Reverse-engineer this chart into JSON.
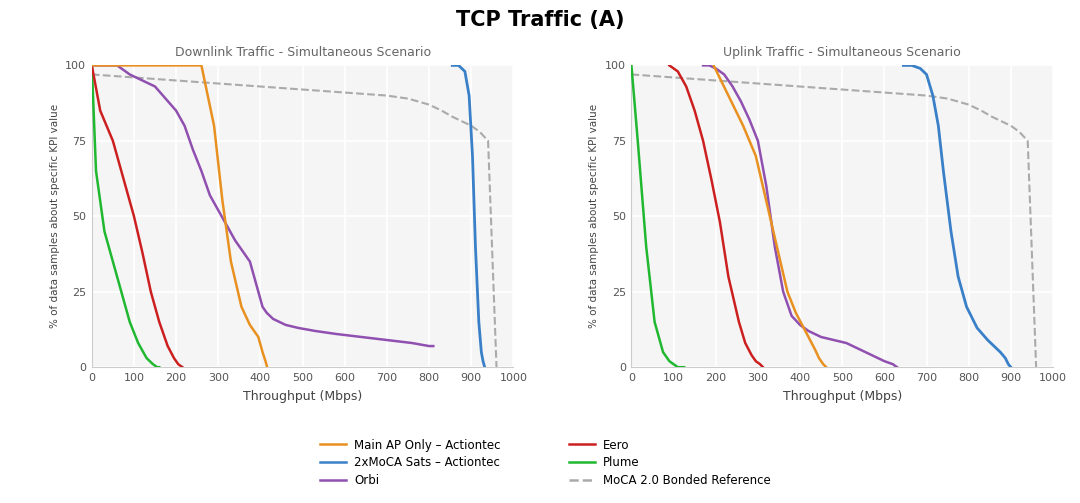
{
  "title": "TCP Traffic (A)",
  "title_fontsize": 15,
  "title_fontweight": "bold",
  "left_title": "Downlink Traffic - Simultaneous Scenario",
  "right_title": "Uplink Traffic - Simultaneous Scenario",
  "xlabel": "Throughput (Mbps)",
  "ylabel": "% of data samples about specific KPI value",
  "xlim": [
    0,
    1000
  ],
  "ylim": [
    0,
    100
  ],
  "xticks": [
    0,
    100,
    200,
    300,
    400,
    500,
    600,
    700,
    800,
    900,
    1000
  ],
  "yticks": [
    0,
    25,
    50,
    75,
    100
  ],
  "background_color": "#ffffff",
  "plot_bg_color": "#f5f5f5",
  "grid_color": "#ffffff",
  "colors": {
    "main_ap": "#E89020",
    "moca2x": "#3A80C8",
    "orbi": "#9050B0",
    "eero": "#CC2020",
    "plume": "#20B830",
    "reference": "#AAAAAA"
  },
  "legend": [
    {
      "label": "Main AP Only – Actiontec",
      "color": "#E89020",
      "linestyle": "solid"
    },
    {
      "label": "2xMoCA Sats – Actiontec",
      "color": "#3A80C8",
      "linestyle": "solid"
    },
    {
      "label": "Orbi",
      "color": "#9050B0",
      "linestyle": "solid"
    },
    {
      "label": "Eero",
      "color": "#CC2020",
      "linestyle": "solid"
    },
    {
      "label": "Plume",
      "color": "#20B830",
      "linestyle": "solid"
    },
    {
      "label": "MoCA 2.0 Bonded Reference",
      "color": "#AAAAAA",
      "linestyle": "dashed"
    }
  ],
  "downlink": {
    "plume": {
      "x": [
        0,
        10,
        30,
        60,
        90,
        110,
        130,
        145,
        155,
        160
      ],
      "y": [
        100,
        65,
        45,
        30,
        15,
        8,
        3,
        1,
        0,
        0
      ]
    },
    "eero": {
      "x": [
        0,
        20,
        50,
        80,
        100,
        120,
        140,
        160,
        180,
        195,
        205,
        215
      ],
      "y": [
        100,
        85,
        75,
        60,
        50,
        38,
        25,
        15,
        7,
        3,
        1,
        0
      ]
    },
    "orbi": {
      "x": [
        0,
        30,
        60,
        90,
        120,
        150,
        200,
        220,
        240,
        260,
        280,
        300,
        320,
        340,
        360,
        375,
        385,
        395,
        405,
        415,
        430,
        460,
        490,
        530,
        580,
        640,
        700,
        760,
        800,
        810
      ],
      "y": [
        100,
        100,
        100,
        97,
        95,
        93,
        85,
        80,
        72,
        65,
        57,
        52,
        47,
        42,
        38,
        35,
        30,
        25,
        20,
        18,
        16,
        14,
        13,
        12,
        11,
        10,
        9,
        8,
        7,
        7
      ]
    },
    "main_ap": {
      "x": [
        0,
        100,
        200,
        260,
        290,
        310,
        330,
        355,
        375,
        395,
        405,
        412,
        416
      ],
      "y": [
        100,
        100,
        100,
        100,
        80,
        55,
        35,
        20,
        14,
        10,
        5,
        2,
        0
      ]
    },
    "moca2x": {
      "x": [
        855,
        870,
        885,
        895,
        903,
        910,
        918,
        924,
        928,
        932
      ],
      "y": [
        100,
        100,
        98,
        90,
        70,
        40,
        15,
        5,
        2,
        0
      ]
    },
    "reference": {
      "x": [
        0,
        100,
        200,
        300,
        400,
        500,
        600,
        700,
        750,
        800,
        830,
        855,
        870,
        885,
        900,
        920,
        940,
        960
      ],
      "y": [
        97,
        96,
        95,
        94,
        93,
        92,
        91,
        90,
        89,
        87,
        85,
        83,
        82,
        81,
        80,
        78,
        75,
        0
      ]
    }
  },
  "uplink": {
    "plume": {
      "x": [
        0,
        15,
        35,
        55,
        75,
        90,
        100,
        110,
        120,
        125
      ],
      "y": [
        100,
        75,
        40,
        15,
        5,
        2,
        1,
        0,
        0,
        0
      ]
    },
    "eero": {
      "x": [
        90,
        110,
        130,
        150,
        170,
        190,
        210,
        230,
        255,
        270,
        285,
        295,
        305,
        312
      ],
      "y": [
        100,
        98,
        93,
        85,
        75,
        62,
        48,
        30,
        15,
        8,
        4,
        2,
        1,
        0
      ]
    },
    "orbi": {
      "x": [
        170,
        185,
        200,
        220,
        240,
        260,
        280,
        300,
        320,
        340,
        360,
        380,
        400,
        420,
        450,
        480,
        510,
        540,
        570,
        600,
        620,
        630
      ],
      "y": [
        100,
        100,
        99,
        97,
        93,
        88,
        82,
        75,
        60,
        40,
        25,
        17,
        14,
        12,
        10,
        9,
        8,
        6,
        4,
        2,
        1,
        0
      ]
    },
    "main_ap": {
      "x": [
        195,
        230,
        265,
        295,
        320,
        345,
        370,
        390,
        405,
        420,
        435,
        445,
        455,
        462
      ],
      "y": [
        100,
        90,
        80,
        70,
        55,
        40,
        25,
        18,
        14,
        10,
        6,
        3,
        1,
        0
      ]
    },
    "moca2x": {
      "x": [
        645,
        665,
        685,
        700,
        715,
        728,
        740,
        758,
        775,
        795,
        820,
        845,
        860,
        875,
        887,
        894,
        900
      ],
      "y": [
        100,
        100,
        99,
        97,
        90,
        80,
        65,
        45,
        30,
        20,
        13,
        9,
        7,
        5,
        3,
        1,
        0
      ]
    },
    "reference": {
      "x": [
        0,
        100,
        200,
        300,
        400,
        500,
        600,
        700,
        750,
        800,
        830,
        855,
        870,
        885,
        900,
        920,
        940,
        960
      ],
      "y": [
        97,
        96,
        95,
        94,
        93,
        92,
        91,
        90,
        89,
        87,
        85,
        83,
        82,
        81,
        80,
        78,
        75,
        0
      ]
    }
  }
}
